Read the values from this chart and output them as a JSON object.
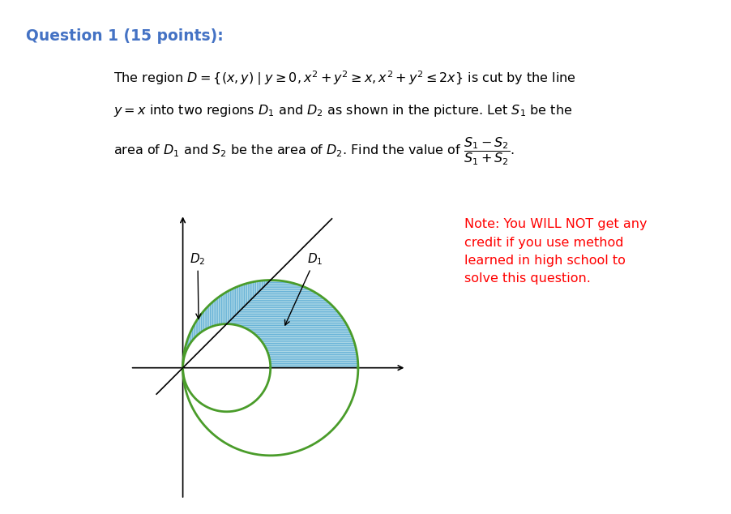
{
  "background_color": "#ffffff",
  "title_text": "Question 1 (15 points):",
  "title_color": "#4472C4",
  "title_fontsize": 13.5,
  "body_text_lines": [
    "The region $D=\\{(x,y)\\mid y\\geq 0, x^2+y^2\\geq x, x^2+y^2\\leq 2x\\}$ is cut by the line",
    "$y=x$ into two regions $D_1$ and $D_2$ as shown in the picture. Let $S_1$ be the",
    "area of $D_1$ and $S_2$ be the area of $D_2$. Find the value of $\\dfrac{S_1-S_2}{S_1+S_2}$."
  ],
  "note_text": "Note: You WILL NOT get any\ncredit if you use method\nlearned in high school to\nsolve this question.",
  "note_color": "#FF0000",
  "note_fontsize": 11.5,
  "circle_color": "#4a9c2a",
  "circle_linewidth": 2.0,
  "fill_color": "#add8e6",
  "hatch_d1": "---",
  "hatch_d2": "|||",
  "line_color": "#000000"
}
